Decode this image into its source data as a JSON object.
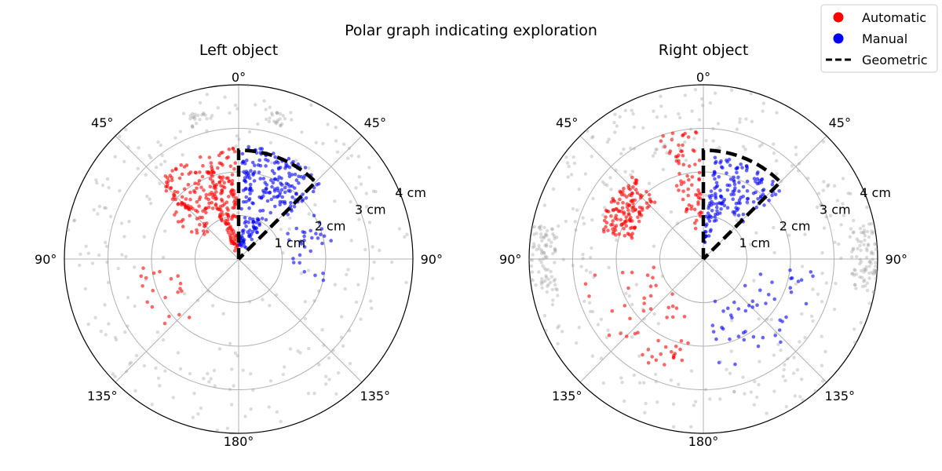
{
  "figure_title": "Polar graph indicating exploration",
  "legend": [
    {
      "label": "Automatic",
      "color": "#ff0000",
      "kind": "dot"
    },
    {
      "label": "Manual",
      "color": "#0000ff",
      "kind": "dot"
    },
    {
      "label": "Geometric",
      "color": "#000000",
      "kind": "dashed-line"
    }
  ],
  "colors": {
    "automatic": "#ff0000",
    "manual": "#0000ff",
    "background_points": "#999999",
    "geometric": "#000000",
    "grid": "#b0b0b0"
  },
  "chart_data": [
    {
      "type": "scatter",
      "projection": "polar",
      "title": "Left object",
      "theta_zero": "top",
      "theta_ticks": [
        "0°",
        "45°",
        "90°",
        "135°",
        "180°",
        "135°",
        "90°",
        "45°"
      ],
      "r_ticks": [
        "1 cm",
        "2 cm",
        "3 cm",
        "4 cm"
      ],
      "r_lim": [
        0,
        4
      ],
      "geometric_boundary": {
        "theta_deg": [
          0,
          0,
          45,
          45,
          0
        ],
        "r_cm": [
          0,
          2.5,
          2.5,
          0,
          0
        ]
      },
      "series": [
        {
          "name": "Automatic",
          "clusters": [
            {
              "theta_range_deg": [
                -48,
                -2
              ],
              "r_range_cm": [
                1.3,
                2.55
              ],
              "count": 170
            },
            {
              "theta_range_deg": [
                -25,
                -2
              ],
              "r_range_cm": [
                0.2,
                1.3
              ],
              "count": 70
            },
            {
              "theta_range_deg": [
                -60,
                -40
              ],
              "r_range_cm": [
                0.8,
                1.8
              ],
              "count": 25
            },
            {
              "theta_range_deg": [
                -140,
                -95
              ],
              "r_range_cm": [
                1.4,
                2.4
              ],
              "count": 20
            }
          ]
        },
        {
          "name": "Manual",
          "clusters": [
            {
              "theta_range_deg": [
                2,
                48
              ],
              "r_range_cm": [
                1.5,
                2.6
              ],
              "count": 160
            },
            {
              "theta_range_deg": [
                2,
                35
              ],
              "r_range_cm": [
                0.3,
                1.5
              ],
              "count": 70
            },
            {
              "theta_range_deg": [
                60,
                105
              ],
              "r_range_cm": [
                1.2,
                2.2
              ],
              "count": 30
            }
          ]
        },
        {
          "name": "Background",
          "clusters": [
            {
              "theta_range_deg": [
                -180,
                180
              ],
              "r_range_cm": [
                2.5,
                4.0
              ],
              "count": 200
            },
            {
              "theta_range_deg": [
                -20,
                -10
              ],
              "r_range_cm": [
                3.2,
                3.5
              ],
              "count": 20
            },
            {
              "theta_range_deg": [
                10,
                20
              ],
              "r_range_cm": [
                3.2,
                3.5
              ],
              "count": 20
            },
            {
              "theta_range_deg": [
                -180,
                180
              ],
              "r_range_cm": [
                1.0,
                2.5
              ],
              "count": 40
            }
          ]
        }
      ]
    },
    {
      "type": "scatter",
      "projection": "polar",
      "title": "Right object",
      "theta_zero": "top",
      "theta_ticks": [
        "0°",
        "45°",
        "90°",
        "135°",
        "180°",
        "135°",
        "90°",
        "45°"
      ],
      "r_ticks": [
        "1 cm",
        "2 cm",
        "3 cm",
        "4 cm"
      ],
      "r_lim": [
        0,
        4
      ],
      "geometric_boundary": {
        "theta_deg": [
          0,
          0,
          45,
          45,
          0
        ],
        "r_cm": [
          0,
          2.5,
          2.5,
          0,
          0
        ]
      },
      "series": [
        {
          "name": "Automatic",
          "clusters": [
            {
              "theta_range_deg": [
                -75,
                -40
              ],
              "r_range_cm": [
                1.7,
                2.5
              ],
              "count": 130
            },
            {
              "theta_range_deg": [
                -20,
                -2
              ],
              "r_range_cm": [
                0.7,
                3.0
              ],
              "count": 70
            },
            {
              "theta_range_deg": [
                -170,
                -95
              ],
              "r_range_cm": [
                1.0,
                2.8
              ],
              "count": 50
            }
          ]
        },
        {
          "name": "Manual",
          "clusters": [
            {
              "theta_range_deg": [
                5,
                50
              ],
              "r_range_cm": [
                1.2,
                2.4
              ],
              "count": 120
            },
            {
              "theta_range_deg": [
                2,
                20
              ],
              "r_range_cm": [
                0.3,
                1.5
              ],
              "count": 40
            },
            {
              "theta_range_deg": [
                95,
                175
              ],
              "r_range_cm": [
                1.0,
                2.7
              ],
              "count": 50
            }
          ]
        },
        {
          "name": "Background",
          "clusters": [
            {
              "theta_range_deg": [
                -180,
                180
              ],
              "r_range_cm": [
                2.5,
                4.0
              ],
              "count": 260
            },
            {
              "theta_range_deg": [
                78,
                102
              ],
              "r_range_cm": [
                3.4,
                4.0
              ],
              "count": 80
            },
            {
              "theta_range_deg": [
                -102,
                -78
              ],
              "r_range_cm": [
                3.4,
                4.0
              ],
              "count": 80
            },
            {
              "theta_range_deg": [
                -180,
                180
              ],
              "r_range_cm": [
                1.0,
                2.5
              ],
              "count": 40
            }
          ]
        }
      ]
    }
  ]
}
